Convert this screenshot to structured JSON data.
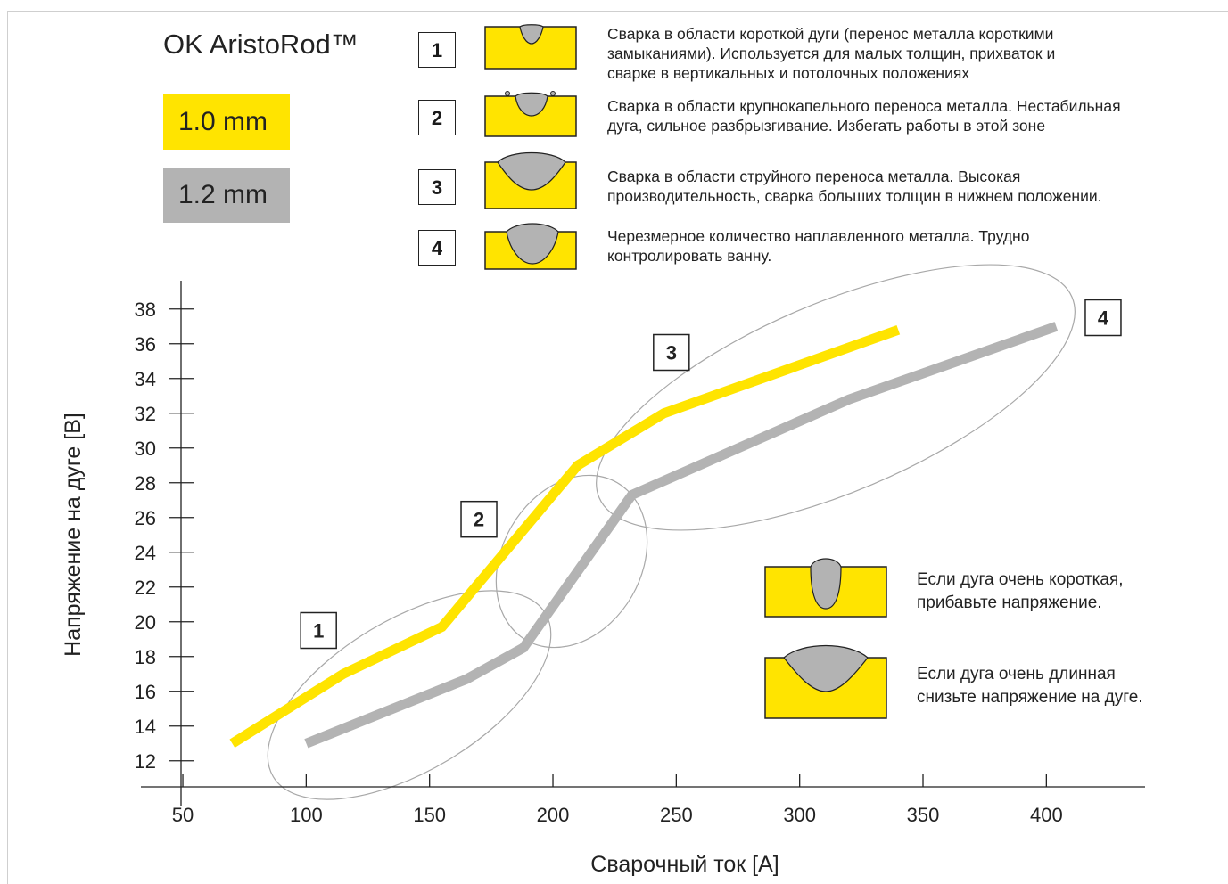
{
  "header": {
    "title": "OK AristoRod™",
    "legend": [
      {
        "label": "1.0 mm",
        "color": "#ffe400"
      },
      {
        "label": "1.2 mm",
        "color": "#b3b3b3"
      }
    ]
  },
  "regions": [
    {
      "number": "1",
      "text_lines": [
        "Сварка в области короткой дуги (перенос металла короткими",
        "замыканиями). Используется для малых толщин, прихваток и",
        "сварке в вертикальных и потолочных положениях"
      ]
    },
    {
      "number": "2",
      "text_lines": [
        "Сварка в области крупнокапельного переноса металла. Нестабильная",
        "дуга, сильное разбрызгивание. Избегать работы в этой зоне"
      ]
    },
    {
      "number": "3",
      "text_lines": [
        "Сварка в области струйного переноса металла. Высокая",
        "производительность, сварка больших толщин в нижнем положении."
      ]
    },
    {
      "number": "4",
      "text_lines": [
        "Черезмерное количество наплавленного металла. Трудно",
        "контролировать ванну."
      ]
    }
  ],
  "tips": [
    {
      "text_lines": [
        "Если дуга очень короткая,",
        "прибавьте напряжение."
      ],
      "bead": "narrow-tall-bead-icon"
    },
    {
      "text_lines": [
        "Если дуга очень длинная",
        "снизьте напряжение на дуге."
      ],
      "bead": "wide-flat-bead-icon"
    }
  ],
  "colors": {
    "yellow": "#ffe400",
    "gray": "#b3b3b3",
    "ellipse": "#a8a8a8"
  },
  "chart_data": {
    "type": "line",
    "xlabel": "Сварочный ток [А]",
    "ylabel": "Напряжение на дуге [В]",
    "xlim": [
      33,
      440
    ],
    "ylim": [
      10.5,
      38.5
    ],
    "xticks": [
      50,
      100,
      150,
      200,
      250,
      300,
      350,
      400
    ],
    "yticks": [
      12,
      14,
      16,
      18,
      20,
      22,
      24,
      26,
      28,
      30,
      32,
      34,
      36,
      38
    ],
    "series": [
      {
        "name": "1.0 mm",
        "color": "#ffe400",
        "x": [
          70,
          115,
          155,
          210,
          245,
          340
        ],
        "y": [
          13,
          17,
          19.7,
          29,
          32,
          36.8
        ]
      },
      {
        "name": "1.2 mm",
        "color": "#b3b3b3",
        "x": [
          100,
          165,
          188,
          232,
          320,
          404
        ],
        "y": [
          13,
          16.7,
          18.5,
          27.3,
          32.8,
          37
        ]
      }
    ],
    "zones": [
      {
        "label": "1",
        "label_x": 105,
        "label_y": 19.5
      },
      {
        "label": "2",
        "label_x": 170,
        "label_y": 25.9
      },
      {
        "label": "3",
        "label_x": 248,
        "label_y": 35.5
      },
      {
        "label": "4",
        "label_x": 423,
        "label_y": 37.5
      }
    ]
  }
}
